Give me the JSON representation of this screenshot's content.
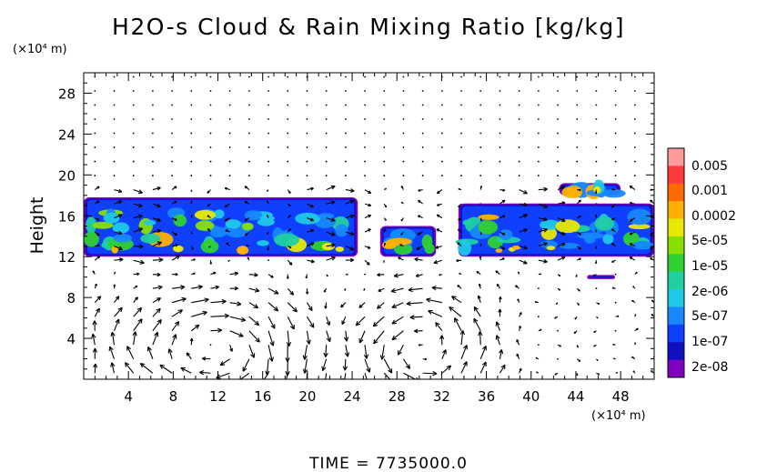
{
  "chart_data": {
    "type": "heatmap",
    "title": "H2O-s Cloud & Rain Mixing Ratio [kg/kg]",
    "ylabel": "Height",
    "yunit": "(×10⁴ m)",
    "xunit": "(×10⁴ m)",
    "xlim": [
      0,
      51
    ],
    "ylim": [
      0,
      30
    ],
    "xticks": [
      "4",
      "8",
      "12",
      "16",
      "20",
      "24",
      "28",
      "32",
      "36",
      "40",
      "44",
      "48"
    ],
    "xtick_values": [
      4,
      8,
      12,
      16,
      20,
      24,
      28,
      32,
      36,
      40,
      44,
      48
    ],
    "yticks": [
      "4",
      "8",
      "12",
      "16",
      "20",
      "24",
      "28"
    ],
    "ytick_values": [
      4,
      8,
      12,
      16,
      20,
      24,
      28
    ],
    "colorbar": {
      "labels": [
        "0.005",
        "0.001",
        "0.0002",
        "5e-05",
        "1e-05",
        "2e-06",
        "5e-07",
        "1e-07",
        "2e-08"
      ],
      "colors": [
        "#ff9a9a",
        "#ff3a3a",
        "#ff6a00",
        "#ffb000",
        "#e8e800",
        "#88e000",
        "#30d030",
        "#20d0a0",
        "#20c8e8",
        "#1888ff",
        "#1040ff",
        "#1010c0",
        "#8000c0"
      ]
    },
    "cloud_layers": [
      {
        "x_range": [
          0,
          24.5
        ],
        "base_height": 12,
        "top_height": 17.8
      },
      {
        "x_range": [
          26.5,
          31.5
        ],
        "base_height": 12,
        "top_height": 15
      },
      {
        "x_range": [
          33.5,
          51
        ],
        "base_height": 12,
        "top_height": 17.2
      },
      {
        "x_range": [
          42.5,
          48
        ],
        "base_height": 18,
        "top_height": 19.2
      },
      {
        "x_range": [
          45,
          47.5
        ],
        "base_height": 9.8,
        "top_height": 10.2
      }
    ],
    "circulations": [
      {
        "center_x": 11,
        "center_y": 3,
        "radius_x": 6,
        "radius_y": 4,
        "direction": "clockwise"
      },
      {
        "center_x": 30,
        "center_y": 3,
        "radius_x": 4,
        "radius_y": 4,
        "direction": "counterclockwise"
      }
    ]
  },
  "footer": {
    "time_label": "TIME  =  7735000.0"
  }
}
